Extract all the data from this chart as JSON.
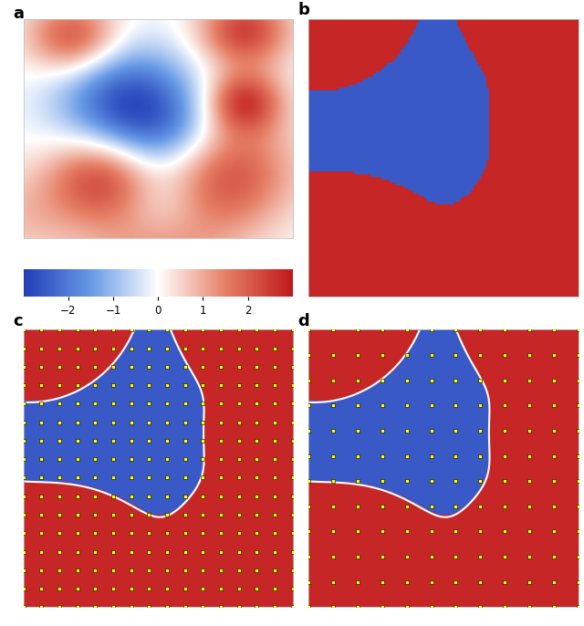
{
  "title_a": "a",
  "title_b": "b",
  "title_c": "c",
  "title_d": "d",
  "colorbar_ticks": [
    -2,
    -1,
    0,
    1,
    2
  ],
  "grid_n": 100,
  "dot_grid_n": 16,
  "threshold": 0.0,
  "bg_color": "#ffffff",
  "red_color": "#cc2222",
  "blue_color": "#3355cc",
  "contour_color": "#ffffff",
  "dot_face_color": "#ffff00",
  "dot_edge_color": "#000000",
  "colorbar_vmin": -3.0,
  "colorbar_vmax": 3.0,
  "red_rgb": [
    0.78,
    0.15,
    0.15
  ],
  "blue_rgb": [
    0.22,
    0.35,
    0.78
  ]
}
